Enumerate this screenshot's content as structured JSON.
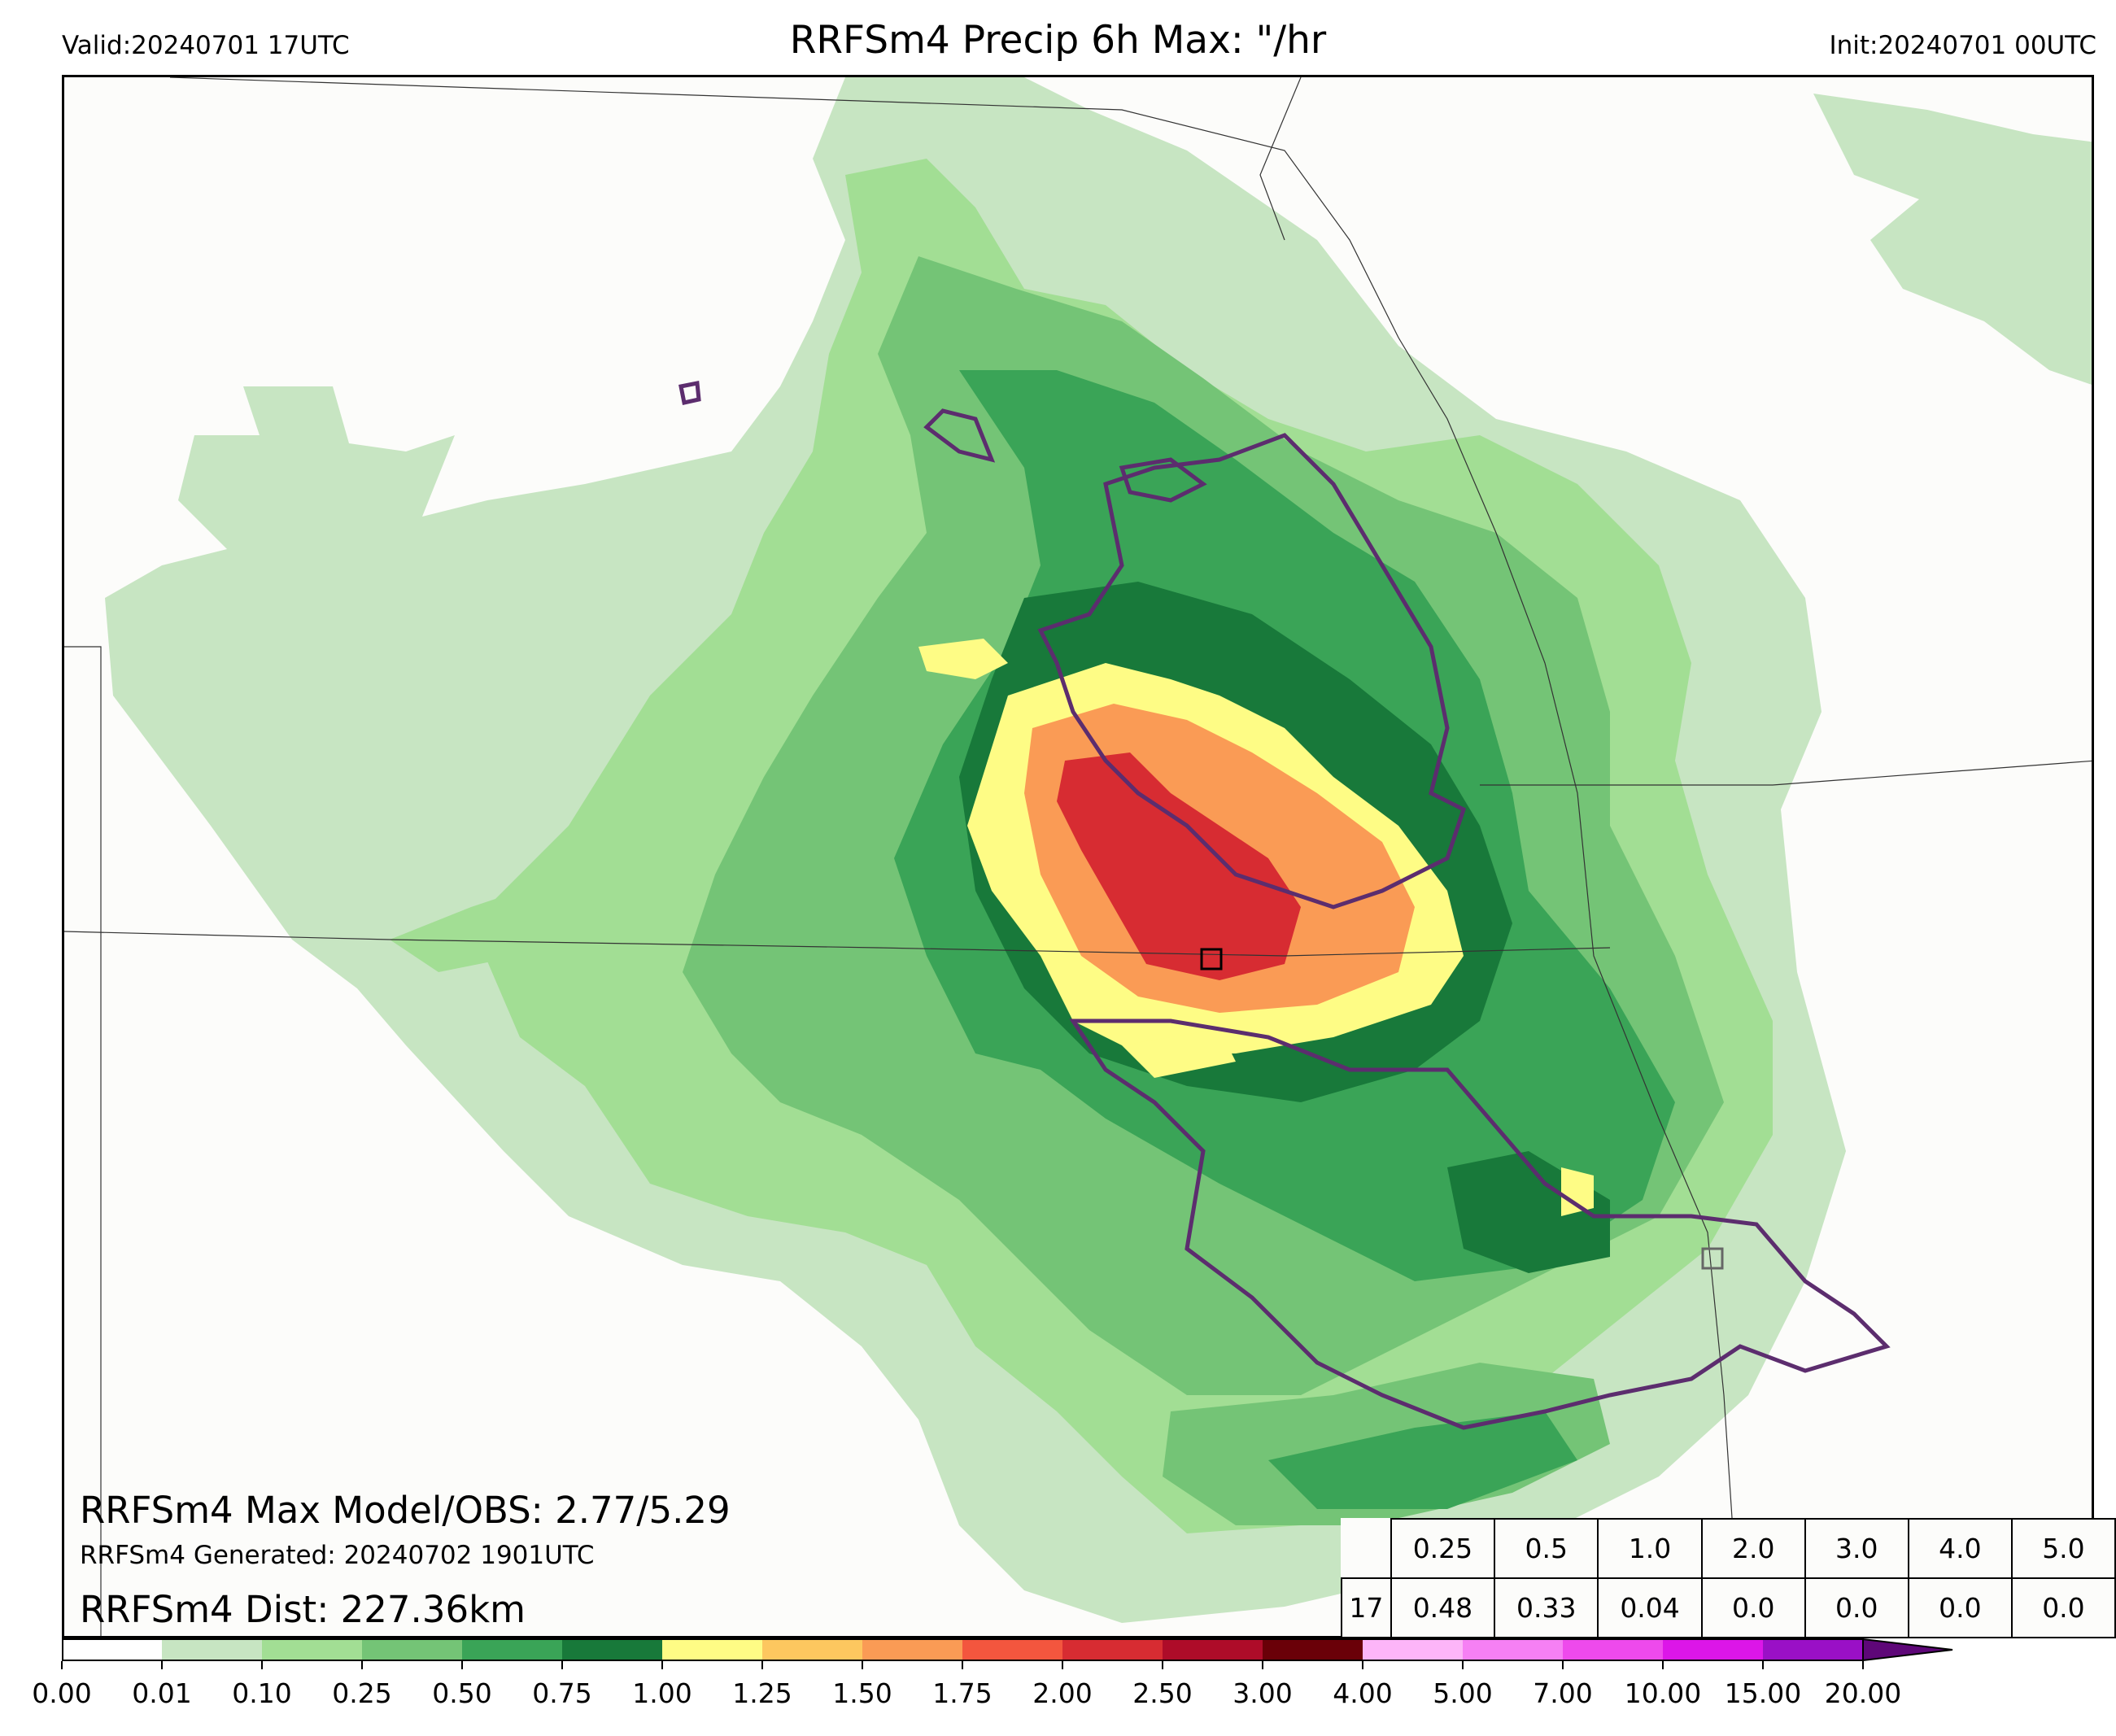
{
  "header": {
    "valid_label": "Valid:20240701 17UTC",
    "title": "RRFSm4 Precip 6h Max: \"/hr",
    "init_label": "Init:20240701 00UTC"
  },
  "stats": {
    "max_model_obs": "RRFSm4 Max Model/OBS: 2.77/5.29",
    "generated": "RRFSm4 Generated: 20240702 1901UTC",
    "distance": "RRFSm4 Dist: 227.36km"
  },
  "threshold_table": {
    "row_label": "17",
    "thresholds": [
      "0.25",
      "0.5",
      "1.0",
      "2.0",
      "3.0",
      "4.0",
      "5.0"
    ],
    "values": [
      "0.48",
      "0.33",
      "0.04",
      "0.0",
      "0.0",
      "0.0",
      "0.0"
    ]
  },
  "colorbar": {
    "ticks": [
      "0.00",
      "0.01",
      "0.10",
      "0.25",
      "0.50",
      "0.75",
      "1.00",
      "1.25",
      "1.50",
      "1.75",
      "2.00",
      "2.50",
      "3.00",
      "4.00",
      "5.00",
      "7.00",
      "10.00",
      "15.00",
      "20.00"
    ],
    "colors": [
      "#ffffff",
      "#c7e5c2",
      "#a2de94",
      "#74c476",
      "#3aa457",
      "#18793a",
      "#fefc85",
      "#fdc75f",
      "#fa9b55",
      "#f3563e",
      "#d72c32",
      "#ae0c29",
      "#6a0008",
      "#fdb5f8",
      "#f680f4",
      "#ee4aec",
      "#dc16e8",
      "#9a10c6"
    ],
    "extend_color": "#5e0778"
  },
  "map_colors": {
    "light_green": "#c7e5c2",
    "mid_green": "#a2de94",
    "green": "#74c476",
    "dark_green": "#3aa457",
    "darkest_green": "#18793a",
    "yellow": "#fefc85",
    "orange": "#fa9b55",
    "red": "#d72c32",
    "obs_contour": "#5c2d6e"
  }
}
